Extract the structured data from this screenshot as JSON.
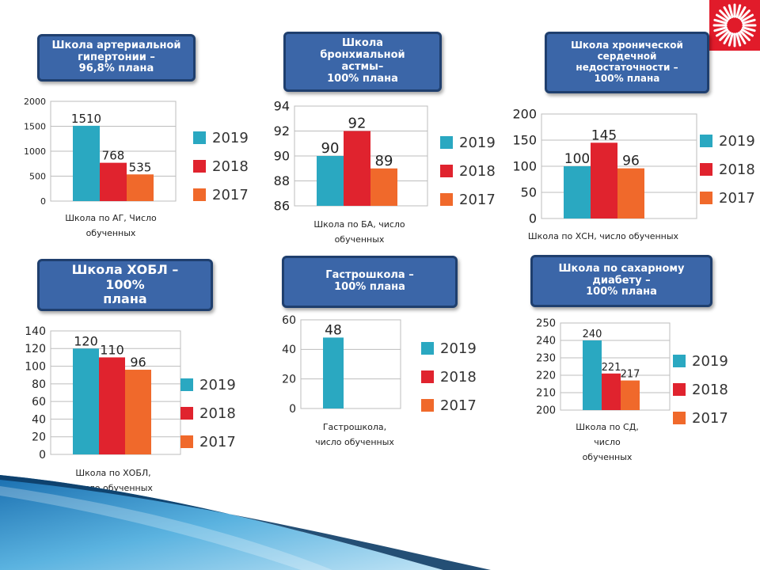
{
  "logo": "sun-logo-icon",
  "colors": {
    "2019": "#2aa8c1",
    "2018": "#e0232e",
    "2017": "#f0692b",
    "banner": "#3b66a8",
    "banner_border": "#1f3f6e"
  },
  "legend_labels": [
    "2019",
    "2018",
    "2017"
  ],
  "chart_data": [
    {
      "type": "bar",
      "title": "Школа артериальной\nгипертонии –\n96,8% плана",
      "categories": [
        "Школа по АГ, Число\nобученных"
      ],
      "series": [
        {
          "name": "2019",
          "values": [
            1510
          ]
        },
        {
          "name": "2018",
          "values": [
            768
          ]
        },
        {
          "name": "2017",
          "values": [
            535
          ]
        }
      ],
      "ylim": [
        0,
        2000
      ],
      "yticks": [
        "0",
        "500",
        "1000",
        "1500",
        "2000"
      ],
      "data_labels": [
        "1510",
        "768",
        "535"
      ],
      "grid": true,
      "legend": "right"
    },
    {
      "type": "bar",
      "title": "Школа\nбронхиальной\nастмы–\n100% плана",
      "categories": [
        "Школа по БА, число\nобученных"
      ],
      "series": [
        {
          "name": "2019",
          "values": [
            90
          ]
        },
        {
          "name": "2018",
          "values": [
            92
          ]
        },
        {
          "name": "2017",
          "values": [
            89
          ]
        }
      ],
      "ylim": [
        86,
        94
      ],
      "yticks": [
        "86",
        "88",
        "90",
        "92",
        "94"
      ],
      "data_labels": [
        "90",
        "92",
        "89"
      ],
      "grid": true,
      "legend": "right"
    },
    {
      "type": "bar",
      "title": "Школа хронической\nсердечной\nнедостаточности –\n100% плана",
      "categories": [
        "Школа по ХСН, число обученных"
      ],
      "series": [
        {
          "name": "2019",
          "values": [
            100
          ]
        },
        {
          "name": "2018",
          "values": [
            145
          ]
        },
        {
          "name": "2017",
          "values": [
            96
          ]
        }
      ],
      "ylim": [
        0,
        200
      ],
      "yticks": [
        "0",
        "50",
        "100",
        "150",
        "200"
      ],
      "data_labels": [
        "100",
        "145",
        "96"
      ],
      "grid": true,
      "legend": "right"
    },
    {
      "type": "bar",
      "title": "Школа ХОБЛ –\n100%\nплана",
      "categories": [
        "Школа по ХОБЛ,\nчисло обученных"
      ],
      "series": [
        {
          "name": "2019",
          "values": [
            120
          ]
        },
        {
          "name": "2018",
          "values": [
            110
          ]
        },
        {
          "name": "2017",
          "values": [
            96
          ]
        }
      ],
      "ylim": [
        0,
        140
      ],
      "yticks": [
        "0",
        "20",
        "40",
        "60",
        "80",
        "100",
        "120",
        "140"
      ],
      "data_labels": [
        "120",
        "110",
        "96"
      ],
      "grid": true,
      "legend": "right"
    },
    {
      "type": "bar",
      "title": "Гастрошкола –\n100% плана",
      "categories": [
        "Гастрошкола,\nчисло обученных"
      ],
      "series": [
        {
          "name": "2019",
          "values": [
            48
          ]
        }
      ],
      "ylim": [
        0,
        60
      ],
      "yticks": [
        "0",
        "20",
        "40",
        "60"
      ],
      "data_labels": [
        "48"
      ],
      "grid": true,
      "legend": "right"
    },
    {
      "type": "bar",
      "title": "Школа по сахарному\nдиабету –\n100% плана",
      "categories": [
        "Школа по СД,\nчисло\nобученных"
      ],
      "series": [
        {
          "name": "2019",
          "values": [
            240
          ]
        },
        {
          "name": "2018",
          "values": [
            221
          ]
        },
        {
          "name": "2017",
          "values": [
            217
          ]
        }
      ],
      "ylim": [
        200,
        250
      ],
      "yticks": [
        "200",
        "210",
        "220",
        "230",
        "240",
        "250"
      ],
      "data_labels": [
        "240",
        "221",
        "217"
      ],
      "grid": true,
      "legend": "right"
    }
  ]
}
